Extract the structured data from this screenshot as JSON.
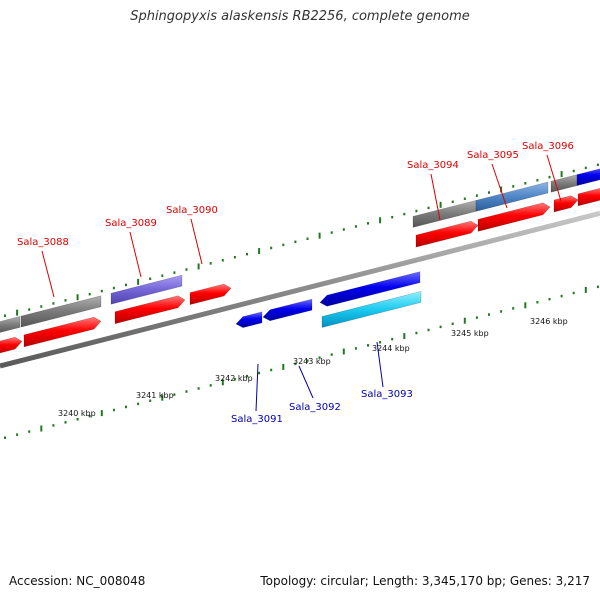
{
  "title": "Sphingopyxis alaskensis RB2256, complete genome",
  "footer": {
    "accession": "Accession: NC_008048",
    "summary": "Topology: circular; Length: 3,345,170 bp; Genes: 3,217"
  },
  "colors": {
    "forward_cds": "#ff0000",
    "reverse_cds": "#0000ee",
    "forward_label": "#dd0000",
    "reverse_label": "#0000aa",
    "tick": "#1f7a1f",
    "backbone": "#8a8a8a"
  },
  "kbp_labels": [
    "3240 kbp",
    "3241 kbp",
    "3242 kbp",
    "3243 kbp",
    "3244 kbp",
    "3245 kbp",
    "3246 kbp"
  ],
  "genes_forward": [
    "Sala_3088",
    "Sala_3089",
    "Sala_3090",
    "Sala_3094",
    "Sala_3095",
    "Sala_3096"
  ],
  "genes_reverse": [
    "Sala_3091",
    "Sala_3092",
    "Sala_3093"
  ]
}
